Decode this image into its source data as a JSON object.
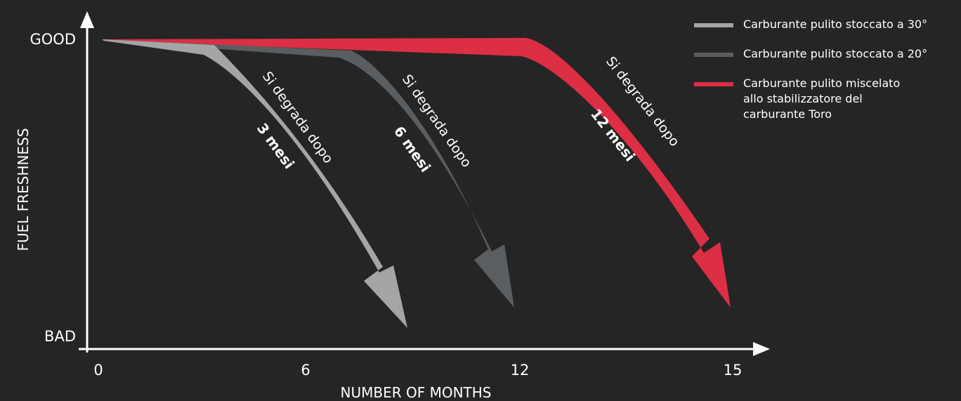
{
  "chart_data": {
    "type": "line",
    "title": "",
    "xlabel": "NUMBER OF MONTHS",
    "ylabel": "FUEL FRESHNESS",
    "x_ticks": [
      "0",
      "6",
      "12",
      "15"
    ],
    "y_ticks": [
      "BAD",
      "GOOD"
    ],
    "legend_position": "top-right",
    "grid": false,
    "series": [
      {
        "name": "Carburante pulito stoccato a 30°",
        "color": "#a3a5a7",
        "degrade_months": 3,
        "label_text": "Si degrada dopo",
        "label_bold": "3 mesi"
      },
      {
        "name": "Carburante pulito stoccato a 20°",
        "color": "#5b5e60",
        "degrade_months": 6,
        "label_text": "Si degrada dopo",
        "label_bold": "6 mesi"
      },
      {
        "name": "Carburante pulito miscelato\nallo stabilizzatore del\ncarburante Toro",
        "color": "#dc2f44",
        "degrade_months": 12,
        "label_text": "Si degrada dopo",
        "label_bold": "12 mesi"
      }
    ]
  }
}
